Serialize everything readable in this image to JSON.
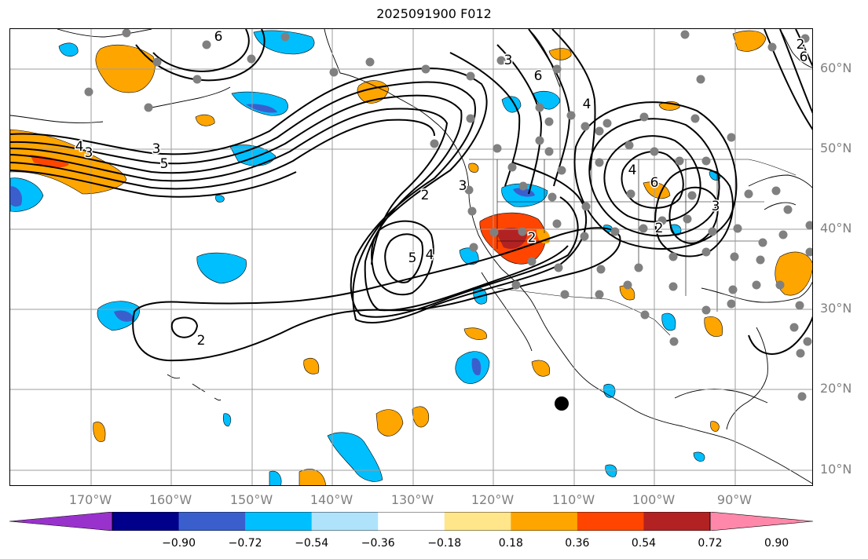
{
  "title": "2025091900 F012",
  "lat_labels": [
    "60°N",
    "50°N",
    "40°N",
    "30°N",
    "20°N",
    "10°N"
  ],
  "lon_labels": [
    "170°W",
    "160°W",
    "150°W",
    "140°W",
    "130°W",
    "120°W",
    "110°W",
    "100°W",
    "90°W"
  ],
  "colorbar": {
    "ticks": [
      "−0.90",
      "−0.72",
      "−0.54",
      "−0.36",
      "−0.18",
      "0.18",
      "0.36",
      "0.54",
      "0.72",
      "0.90"
    ],
    "colors": [
      "#9932cc",
      "#00008b",
      "#3a5fcd",
      "#00bfff",
      "#aee3fb",
      "#ffffff",
      "#ffe68a",
      "#ffa500",
      "#ff4500",
      "#b22222",
      "#ff88aa"
    ]
  },
  "contour_labels": [
    "6",
    "3",
    "5",
    "4",
    "3",
    "6",
    "4",
    "3",
    "6",
    "2",
    "3",
    "2",
    "5",
    "4",
    "6",
    "4",
    "2",
    "3",
    "2",
    "2"
  ],
  "colors": {
    "warm": "#ffa500",
    "hot": "#ff4500",
    "cool": "#00bfff",
    "cold": "#3a5fcd",
    "station": "#808080"
  }
}
